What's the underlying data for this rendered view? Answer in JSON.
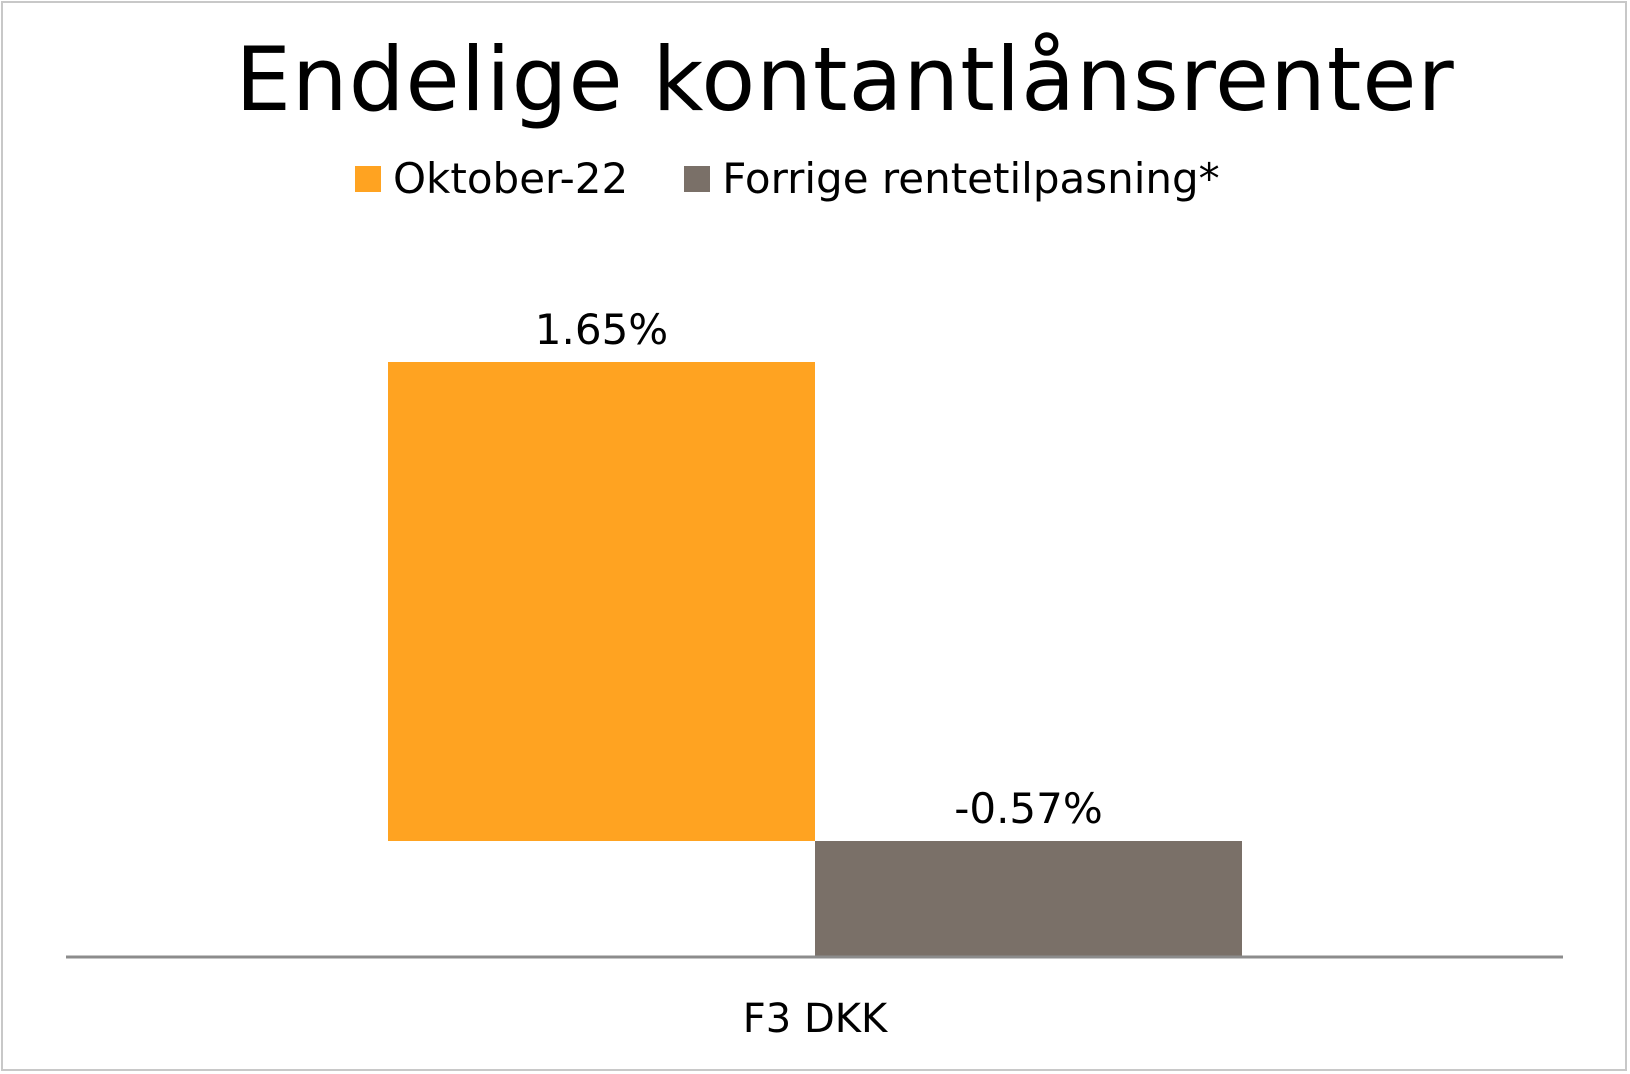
{
  "chart_data": {
    "type": "bar",
    "title": "Endelige kontantlånsrenter",
    "categories": [
      "F3 DKK"
    ],
    "series": [
      {
        "name": "Oktober-22",
        "values": [
          1.65
        ],
        "labels": [
          "1.65%"
        ],
        "color": "#FFA321"
      },
      {
        "name": "Forrige rentetilpasning*",
        "values": [
          -0.57
        ],
        "labels": [
          "-0.57%"
        ],
        "color": "#7A7068"
      }
    ],
    "ylim": [
      -0.57,
      1.65
    ],
    "xlabel": "",
    "ylabel": "",
    "grid": false,
    "legend_position": "top"
  }
}
